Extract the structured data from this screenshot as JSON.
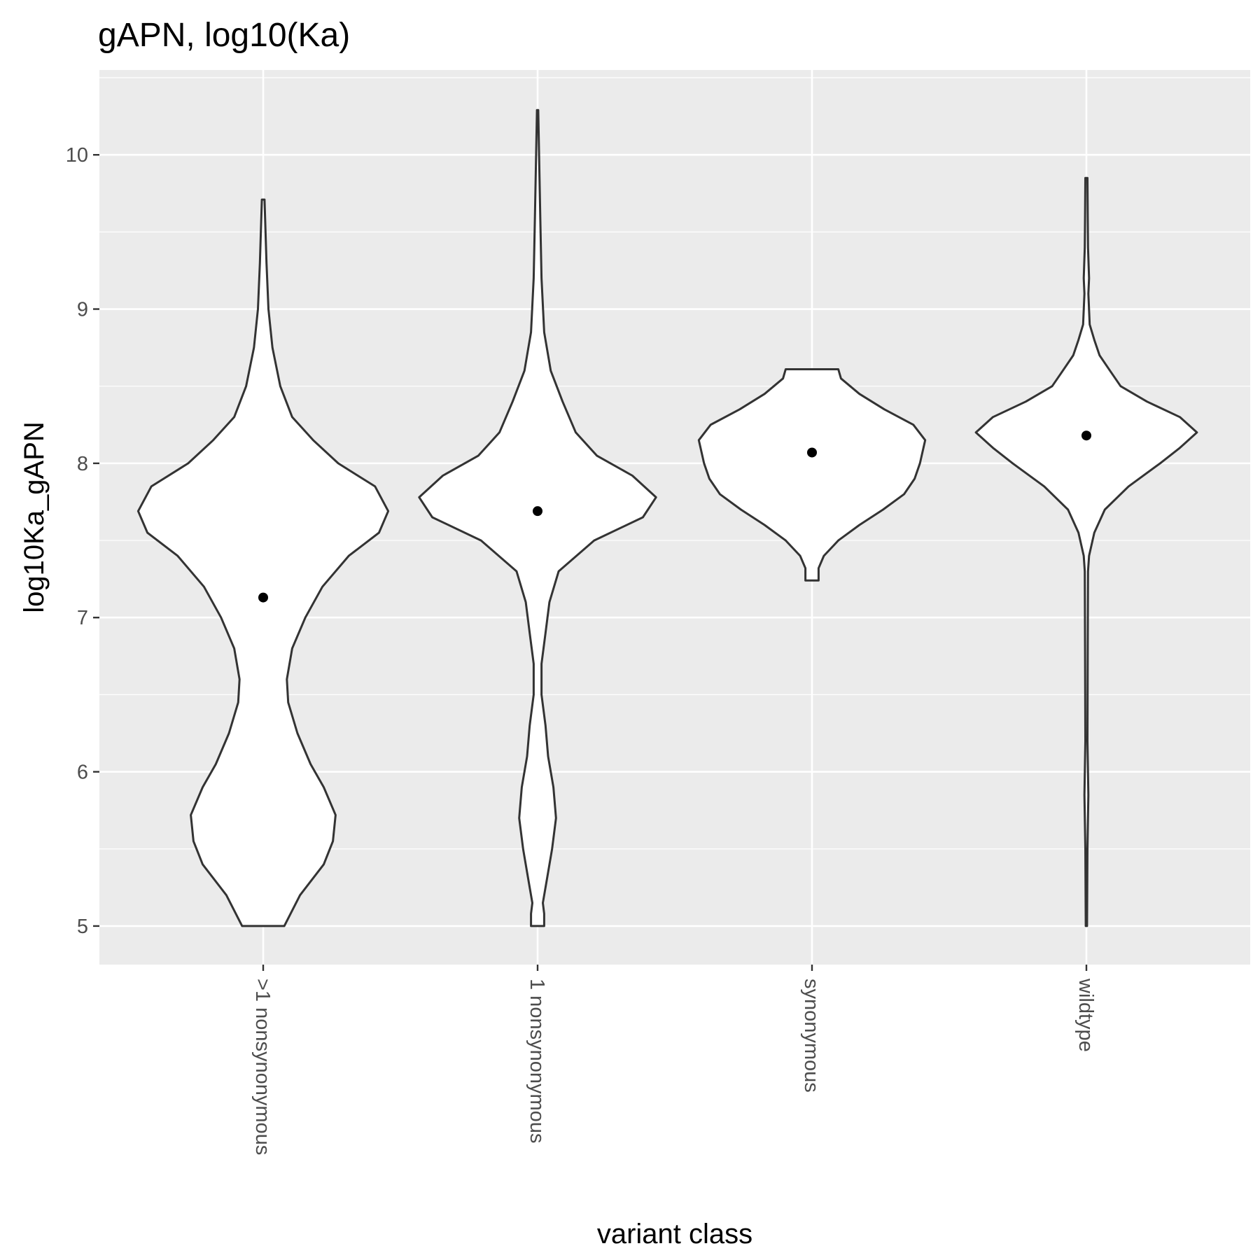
{
  "chart_data": {
    "type": "violin",
    "title": "gAPN, log10(Ka)",
    "xlabel": "variant class",
    "ylabel": "log10Ka_gAPN",
    "ylim": [
      4.75,
      10.55
    ],
    "yticks": [
      5,
      6,
      7,
      8,
      9,
      10
    ],
    "grid": true,
    "categories": [
      ">1 nonsynonymous",
      "1 nonsynonymous",
      "synonymous",
      "wildtype"
    ],
    "series": [
      {
        "category": ">1 nonsynonymous",
        "mean": 7.13,
        "range": [
          5.0,
          9.71
        ],
        "density": [
          [
            5.0,
            0.16
          ],
          [
            5.2,
            0.28
          ],
          [
            5.4,
            0.46
          ],
          [
            5.55,
            0.53
          ],
          [
            5.72,
            0.55
          ],
          [
            5.9,
            0.46
          ],
          [
            6.05,
            0.36
          ],
          [
            6.25,
            0.26
          ],
          [
            6.45,
            0.19
          ],
          [
            6.6,
            0.18
          ],
          [
            6.8,
            0.22
          ],
          [
            7.0,
            0.32
          ],
          [
            7.2,
            0.45
          ],
          [
            7.4,
            0.65
          ],
          [
            7.55,
            0.88
          ],
          [
            7.69,
            0.95
          ],
          [
            7.85,
            0.85
          ],
          [
            8.0,
            0.57
          ],
          [
            8.15,
            0.38
          ],
          [
            8.3,
            0.22
          ],
          [
            8.5,
            0.13
          ],
          [
            8.75,
            0.07
          ],
          [
            9.0,
            0.04
          ],
          [
            9.3,
            0.025
          ],
          [
            9.71,
            0.01
          ]
        ]
      },
      {
        "category": "1 nonsynonymous",
        "mean": 7.69,
        "range": [
          5.0,
          10.29
        ],
        "density": [
          [
            5.0,
            0.05
          ],
          [
            5.08,
            0.05
          ],
          [
            5.15,
            0.04
          ],
          [
            5.3,
            0.07
          ],
          [
            5.5,
            0.11
          ],
          [
            5.7,
            0.14
          ],
          [
            5.9,
            0.12
          ],
          [
            6.1,
            0.08
          ],
          [
            6.3,
            0.06
          ],
          [
            6.5,
            0.03
          ],
          [
            6.7,
            0.03
          ],
          [
            6.9,
            0.06
          ],
          [
            7.1,
            0.09
          ],
          [
            7.3,
            0.16
          ],
          [
            7.5,
            0.43
          ],
          [
            7.65,
            0.8
          ],
          [
            7.78,
            0.9
          ],
          [
            7.92,
            0.72
          ],
          [
            8.05,
            0.45
          ],
          [
            8.2,
            0.29
          ],
          [
            8.4,
            0.19
          ],
          [
            8.6,
            0.1
          ],
          [
            8.85,
            0.05
          ],
          [
            9.2,
            0.03
          ],
          [
            9.6,
            0.02
          ],
          [
            10.29,
            0.005
          ]
        ]
      },
      {
        "category": "synonymous",
        "mean": 8.07,
        "range": [
          7.24,
          8.61
        ],
        "density": [
          [
            7.24,
            0.05
          ],
          [
            7.32,
            0.05
          ],
          [
            7.4,
            0.09
          ],
          [
            7.5,
            0.2
          ],
          [
            7.6,
            0.36
          ],
          [
            7.7,
            0.54
          ],
          [
            7.8,
            0.7
          ],
          [
            7.9,
            0.78
          ],
          [
            8.0,
            0.82
          ],
          [
            8.15,
            0.86
          ],
          [
            8.25,
            0.77
          ],
          [
            8.35,
            0.55
          ],
          [
            8.45,
            0.36
          ],
          [
            8.55,
            0.22
          ],
          [
            8.61,
            0.2
          ]
        ]
      },
      {
        "category": "wildtype",
        "mean": 8.18,
        "range": [
          5.0,
          9.85
        ],
        "density": [
          [
            5.0,
            0.005
          ],
          [
            5.5,
            0.008
          ],
          [
            5.85,
            0.015
          ],
          [
            6.2,
            0.008
          ],
          [
            6.8,
            0.01
          ],
          [
            7.3,
            0.012
          ],
          [
            7.4,
            0.02
          ],
          [
            7.55,
            0.06
          ],
          [
            7.7,
            0.14
          ],
          [
            7.85,
            0.32
          ],
          [
            8.0,
            0.56
          ],
          [
            8.1,
            0.71
          ],
          [
            8.2,
            0.84
          ],
          [
            8.3,
            0.71
          ],
          [
            8.4,
            0.46
          ],
          [
            8.5,
            0.26
          ],
          [
            8.6,
            0.18
          ],
          [
            8.7,
            0.1
          ],
          [
            8.8,
            0.06
          ],
          [
            8.9,
            0.025
          ],
          [
            9.1,
            0.015
          ],
          [
            9.2,
            0.02
          ],
          [
            9.4,
            0.012
          ],
          [
            9.6,
            0.01
          ],
          [
            9.85,
            0.008
          ]
        ]
      }
    ],
    "colors": {
      "panel": "#ebebeb",
      "grid": "#ffffff",
      "violin_fill": "#ffffff",
      "violin_stroke": "#333333",
      "mean_point": "#000000",
      "tick": "#333333"
    }
  }
}
